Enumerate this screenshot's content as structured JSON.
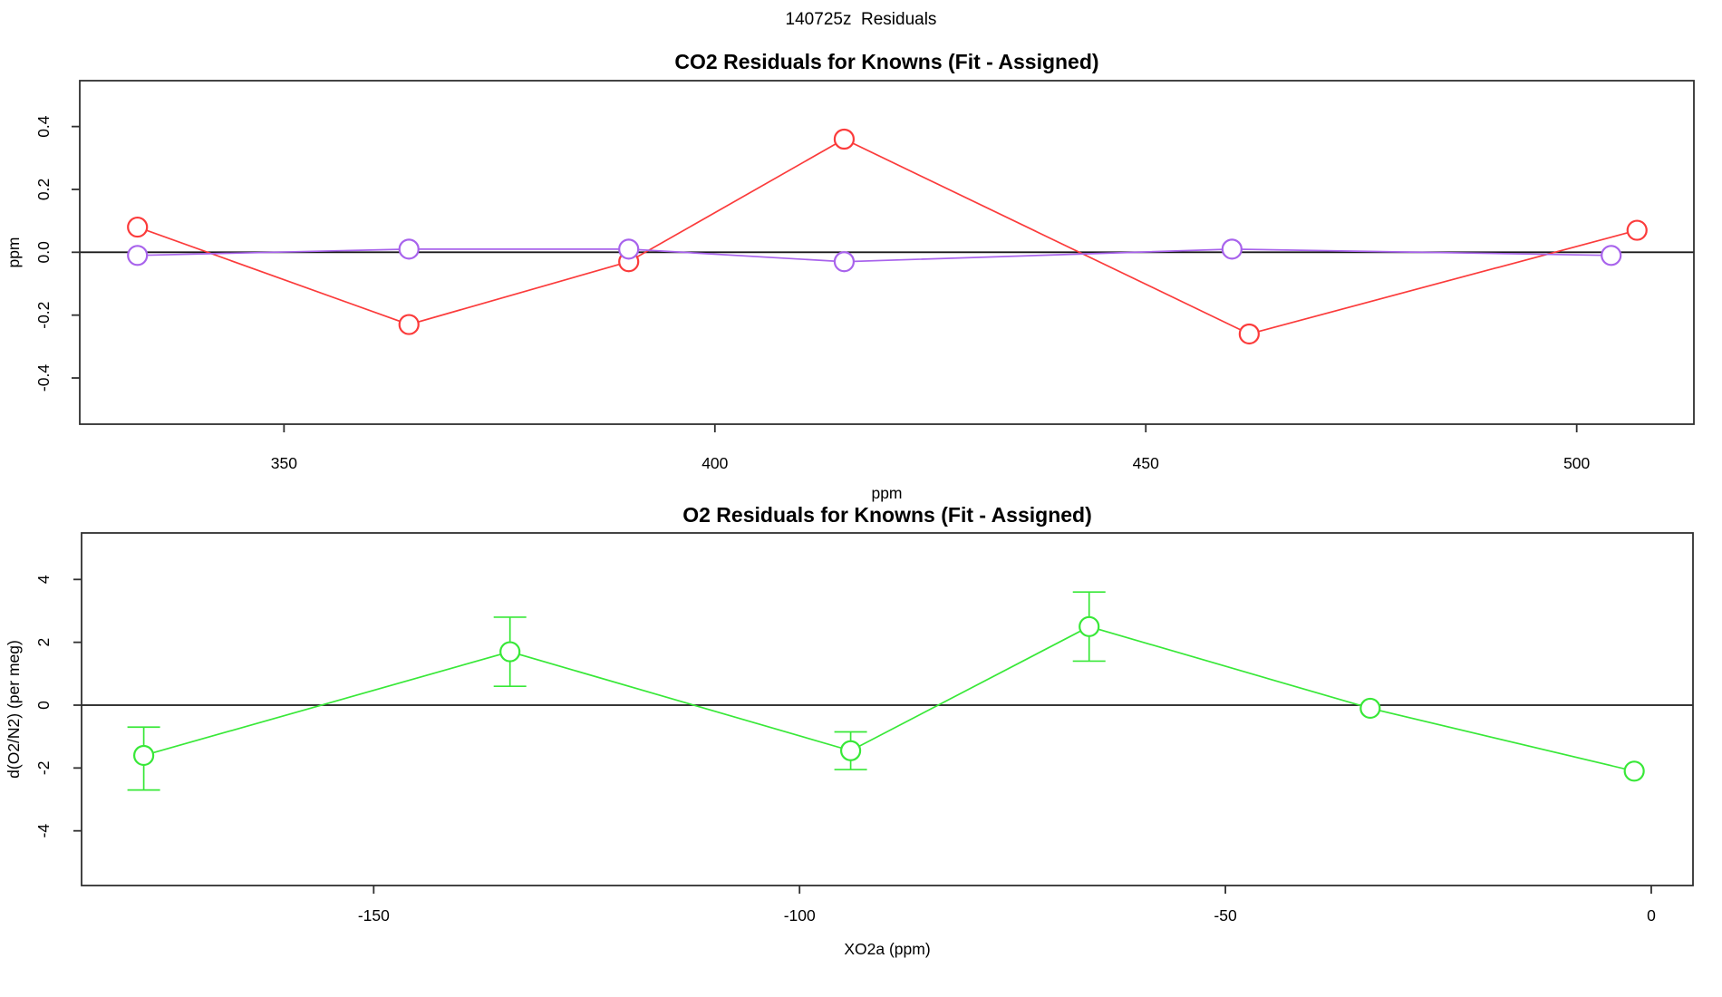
{
  "figure": {
    "title": "140725z  Residuals",
    "background": "#ffffff",
    "axis_color": "#303030",
    "zero_line_color": "#1a1a1a"
  },
  "chart_data": [
    {
      "id": "co2",
      "type": "line",
      "title": "CO2 Residuals for Knowns (Fit - Assigned)",
      "xlabel": "ppm",
      "ylabel": "ppm",
      "xlim": [
        326.3,
        513.6
      ],
      "ylim": [
        -0.547,
        0.546
      ],
      "xticks": [
        350,
        400,
        450,
        500
      ],
      "xtick_labels": [
        "350",
        "400",
        "450",
        "500"
      ],
      "yticks": [
        -0.4,
        -0.2,
        0.0,
        0.2,
        0.4
      ],
      "ytick_labels": [
        "-0.4",
        "-0.2",
        "0.0",
        "0.2",
        "0.4"
      ],
      "grid": false,
      "legend": "none",
      "zero_line": 0,
      "series": [
        {
          "name": "co2-residual-series-red",
          "color": "#FB3B3B",
          "x": [
            333,
            364.5,
            390,
            415,
            462,
            507
          ],
          "y": [
            0.08,
            -0.23,
            -0.03,
            0.36,
            -0.26,
            0.07
          ]
        },
        {
          "name": "co2-residual-series-purple",
          "color": "#A863EC",
          "x": [
            333,
            364.5,
            390,
            415,
            460,
            504
          ],
          "y": [
            -0.01,
            0.01,
            0.01,
            -0.03,
            0.01,
            -0.01
          ]
        }
      ]
    },
    {
      "id": "o2",
      "type": "line",
      "title": "O2 Residuals for Knowns (Fit - Assigned)",
      "xlabel": "XO2a (ppm)",
      "ylabel": "d(O2/N2) (per meg)",
      "xlim": [
        -184.3,
        4.9
      ],
      "ylim": [
        -5.74,
        5.48
      ],
      "xticks": [
        -150,
        -100,
        -50,
        0
      ],
      "xtick_labels": [
        "-150",
        "-100",
        "-50",
        "0"
      ],
      "yticks": [
        -4,
        -2,
        0,
        2,
        4
      ],
      "ytick_labels": [
        "-4",
        "-2",
        "0",
        "2",
        "4"
      ],
      "grid": false,
      "legend": "none",
      "zero_line": 0,
      "series": [
        {
          "name": "o2-residual-series-green",
          "color": "#38E838",
          "x": [
            -177,
            -134,
            -94,
            -66,
            -33,
            -2
          ],
          "y": [
            -1.6,
            1.7,
            -1.45,
            2.5,
            -0.1,
            -2.1
          ],
          "yerr_low": [
            -2.7,
            0.6,
            -2.05,
            1.4,
            null,
            null
          ],
          "yerr_high": [
            -0.7,
            2.8,
            -0.85,
            3.6,
            null,
            null
          ]
        }
      ]
    }
  ]
}
